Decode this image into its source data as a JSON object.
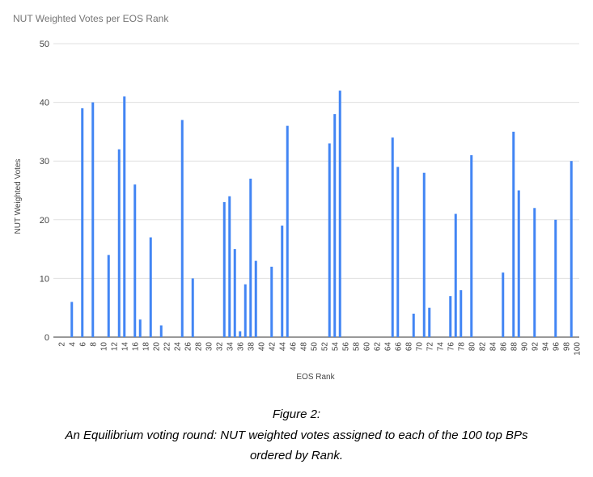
{
  "chart_data": {
    "type": "bar",
    "title": "NUT Weighted Votes per EOS Rank",
    "xlabel": "EOS Rank",
    "ylabel": "NUT Weighted Votes",
    "ylim": [
      0,
      50
    ],
    "yticks": [
      0,
      10,
      20,
      30,
      40,
      50
    ],
    "xlim": [
      1,
      100
    ],
    "xticks": [
      2,
      4,
      6,
      8,
      10,
      12,
      14,
      16,
      18,
      20,
      22,
      24,
      26,
      28,
      30,
      32,
      34,
      36,
      38,
      40,
      42,
      44,
      46,
      48,
      50,
      52,
      54,
      56,
      58,
      60,
      62,
      64,
      66,
      68,
      70,
      72,
      74,
      76,
      78,
      80,
      82,
      84,
      86,
      88,
      90,
      92,
      94,
      96,
      98,
      100
    ],
    "grid": true,
    "bar_color": "#4285f4",
    "points": [
      {
        "x": 4,
        "y": 6
      },
      {
        "x": 6,
        "y": 39
      },
      {
        "x": 8,
        "y": 40
      },
      {
        "x": 11,
        "y": 14
      },
      {
        "x": 13,
        "y": 32
      },
      {
        "x": 14,
        "y": 41
      },
      {
        "x": 16,
        "y": 26
      },
      {
        "x": 17,
        "y": 3
      },
      {
        "x": 19,
        "y": 17
      },
      {
        "x": 21,
        "y": 2
      },
      {
        "x": 25,
        "y": 37
      },
      {
        "x": 27,
        "y": 10
      },
      {
        "x": 33,
        "y": 23
      },
      {
        "x": 34,
        "y": 24
      },
      {
        "x": 35,
        "y": 15
      },
      {
        "x": 36,
        "y": 1
      },
      {
        "x": 37,
        "y": 9
      },
      {
        "x": 38,
        "y": 27
      },
      {
        "x": 39,
        "y": 13
      },
      {
        "x": 42,
        "y": 12
      },
      {
        "x": 44,
        "y": 19
      },
      {
        "x": 45,
        "y": 36
      },
      {
        "x": 53,
        "y": 33
      },
      {
        "x": 54,
        "y": 38
      },
      {
        "x": 55,
        "y": 42
      },
      {
        "x": 65,
        "y": 34
      },
      {
        "x": 66,
        "y": 29
      },
      {
        "x": 69,
        "y": 4
      },
      {
        "x": 71,
        "y": 28
      },
      {
        "x": 72,
        "y": 5
      },
      {
        "x": 76,
        "y": 7
      },
      {
        "x": 77,
        "y": 21
      },
      {
        "x": 78,
        "y": 8
      },
      {
        "x": 80,
        "y": 31
      },
      {
        "x": 86,
        "y": 11
      },
      {
        "x": 88,
        "y": 35
      },
      {
        "x": 89,
        "y": 25
      },
      {
        "x": 92,
        "y": 22
      },
      {
        "x": 96,
        "y": 20
      },
      {
        "x": 99,
        "y": 30
      }
    ]
  },
  "caption": {
    "heading": "Figure 2:",
    "line1": "An Equilibrium voting round: NUT weighted votes assigned to each of the 100 top BPs",
    "line2": "ordered by Rank."
  }
}
